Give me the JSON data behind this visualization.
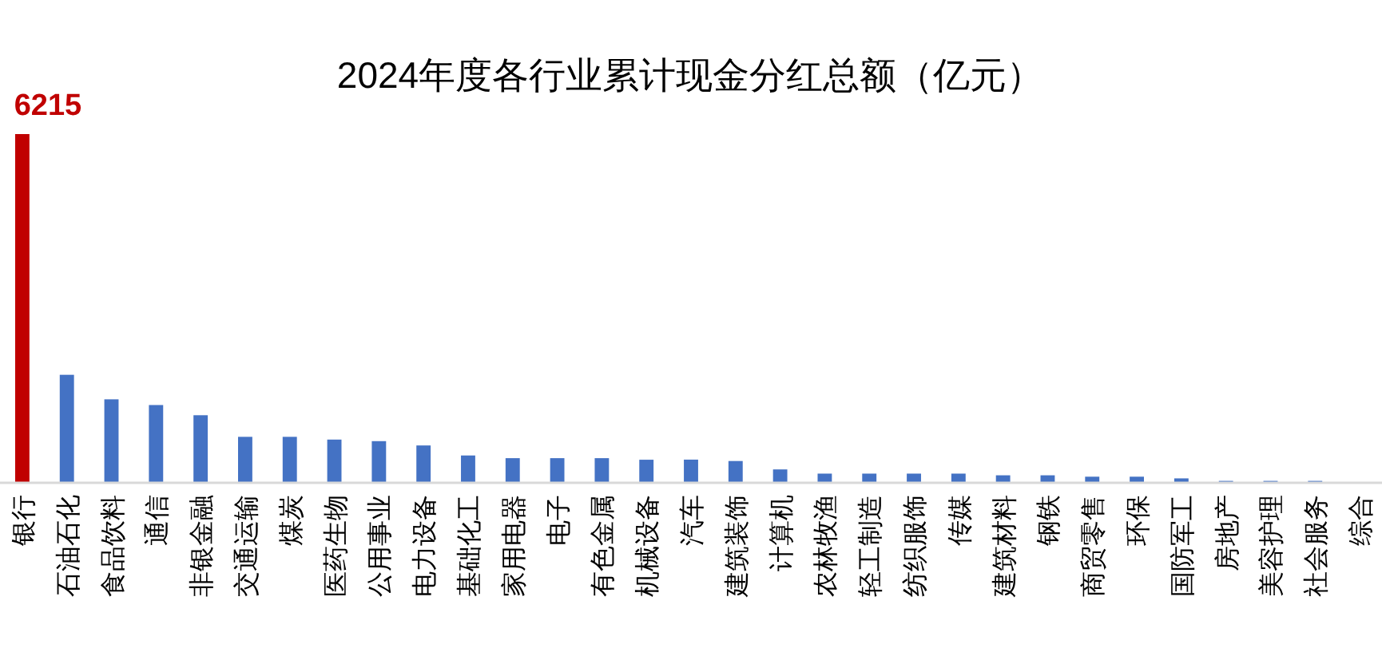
{
  "chart_data": {
    "type": "bar",
    "title": "2024年度各行业累计现金分红总额（亿元）",
    "categories": [
      "银行",
      "石油石化",
      "食品饮料",
      "通信",
      "非银金融",
      "交通运输",
      "煤炭",
      "医药生物",
      "公用事业",
      "电力设备",
      "基础化工",
      "家用电器",
      "电子",
      "有色金属",
      "机械设备",
      "汽车",
      "建筑装饰",
      "计算机",
      "农林牧渔",
      "轻工制造",
      "纺织服饰",
      "传媒",
      "建筑材料",
      "钢铁",
      "商贸零售",
      "环保",
      "国防军工",
      "房地产",
      "美容护理",
      "社会服务",
      "综合"
    ],
    "values": [
      6215,
      1915,
      1477,
      1375,
      1193,
      807,
      807,
      758,
      730,
      653,
      474,
      426,
      426,
      426,
      398,
      400,
      375,
      225,
      150,
      150,
      150,
      150,
      120,
      120,
      95,
      95,
      65,
      20,
      20,
      20,
      0
    ],
    "colors": [
      "#c00000",
      "#4472c4",
      "#4472c4",
      "#4472c4",
      "#4472c4",
      "#4472c4",
      "#4472c4",
      "#4472c4",
      "#4472c4",
      "#4472c4",
      "#4472c4",
      "#4472c4",
      "#4472c4",
      "#4472c4",
      "#4472c4",
      "#4472c4",
      "#4472c4",
      "#4472c4",
      "#4472c4",
      "#4472c4",
      "#4472c4",
      "#4472c4",
      "#4472c4",
      "#4472c4",
      "#4472c4",
      "#4472c4",
      "#4472c4",
      "#4472c4",
      "#4472c4",
      "#4472c4",
      "#4472c4"
    ],
    "value_labels": [
      "6215",
      null,
      null,
      null,
      null,
      null,
      null,
      null,
      null,
      null,
      null,
      null,
      null,
      null,
      null,
      null,
      null,
      null,
      null,
      null,
      null,
      null,
      null,
      null,
      null,
      null,
      null,
      null,
      null,
      null,
      null
    ]
  }
}
